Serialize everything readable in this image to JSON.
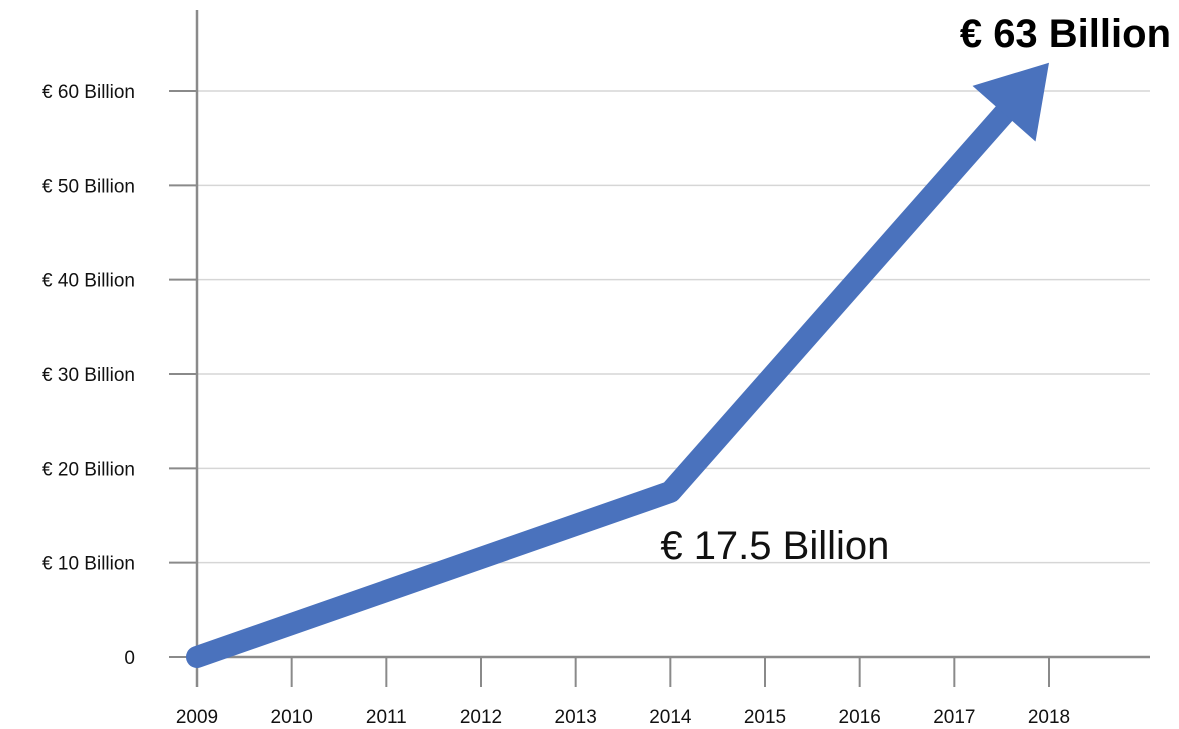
{
  "chart_data": {
    "type": "line",
    "title": "",
    "xlabel": "",
    "ylabel": "",
    "x": [
      "2009",
      "2010",
      "2011",
      "2012",
      "2013",
      "2014",
      "2015",
      "2016",
      "2017",
      "2018"
    ],
    "series": [
      {
        "color": "#4a72bd",
        "points": [
          {
            "x": 2009,
            "y": 0
          },
          {
            "x": 2014,
            "y": 17.5
          },
          {
            "x": 2018,
            "y": 63
          }
        ]
      }
    ],
    "y_ticks": [
      {
        "value": 0,
        "label": "0"
      },
      {
        "value": 10,
        "label": "€ 10 Billion"
      },
      {
        "value": 20,
        "label": "€ 20 Billion"
      },
      {
        "value": 30,
        "label": "€ 30 Billion"
      },
      {
        "value": 40,
        "label": "€ 40 Billion"
      },
      {
        "value": 50,
        "label": "€ 50 Billion"
      },
      {
        "value": 60,
        "label": "€ 60 Billion"
      }
    ],
    "ylim": [
      0,
      60
    ],
    "xlim": [
      2009,
      2018
    ],
    "grid": true,
    "line_style": "thick arrow",
    "annotations": [
      {
        "text": "€ 17.5 Billion",
        "x": 2014,
        "y": 17.5,
        "bold": false
      },
      {
        "text": "€ 63 Billion",
        "x": 2018,
        "y": 63,
        "bold": true
      }
    ]
  }
}
